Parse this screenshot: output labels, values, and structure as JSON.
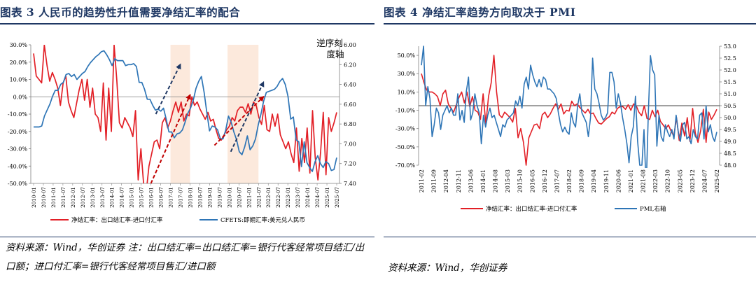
{
  "left": {
    "title": "图表 3   人民币的趋势性升值需要净结汇率的配合",
    "source_note": "资料来源：Wind，华创证券    注：出口结汇率=出口结汇率=银行代客经常项目结汇/出口额；进口付汇率=银行代客经常项目售汇/进口额",
    "chart_data": {
      "type": "line",
      "annotation": "逆序刻度轴",
      "annotation_lines": [
        "逆序刻",
        "度轴"
      ],
      "x_labels": [
        "2010-01",
        "2010-07",
        "2011-01",
        "2011-07",
        "2012-01",
        "2012-07",
        "2013-01",
        "2013-07",
        "2014-01",
        "2014-07",
        "2015-01",
        "2015-07",
        "2016-01",
        "2016-07",
        "2017-01",
        "2017-07",
        "2018-01",
        "2018-07",
        "2019-01",
        "2019-07",
        "2020-01",
        "2020-07",
        "2021-01",
        "2021-07",
        "2022-01",
        "2022-07",
        "2023-01",
        "2023-07",
        "2024-01",
        "2024-07",
        "2025-01",
        "2025-07"
      ],
      "y_left_ticks": [
        "30.0%",
        "20.0%",
        "10.0%",
        "0.0%",
        "-10.0%",
        "-20.0%",
        "-30.0%",
        "-40.0%",
        "-50.0%"
      ],
      "y_left_range": [
        -50,
        30
      ],
      "y_right_ticks": [
        "6.00",
        "6.20",
        "6.40",
        "6.60",
        "6.80",
        "7.00",
        "7.20",
        "7.40"
      ],
      "y_right_range": [
        6.0,
        7.4
      ],
      "y_right_inverted": true,
      "highlight_ranges": [
        [
          "2017-01",
          "2018-01"
        ],
        [
          "2019-12",
          "2021-07"
        ]
      ],
      "series": [
        {
          "name": "净结汇率：出口结汇率-进口付汇率",
          "color": "#e21f26",
          "axis": "left",
          "values": [
            25,
            12,
            10,
            8,
            30,
            18,
            9,
            14,
            10,
            5,
            -5,
            8,
            12,
            -3,
            -8,
            -12,
            -4,
            4,
            10,
            -2,
            10,
            -6,
            5,
            -10,
            -12,
            -20,
            8,
            -25,
            5,
            -20,
            30,
            10,
            -15,
            -18,
            -12,
            -15,
            -18,
            -23,
            -8,
            -48,
            -30,
            -50,
            -55,
            -40,
            -33,
            -26,
            -25,
            -30,
            -15,
            -12,
            -18,
            -14,
            -8,
            -3,
            -9,
            -3,
            -14,
            -10,
            -11,
            0,
            -5,
            -3,
            -7,
            -10,
            -13,
            -9,
            -14,
            -13,
            -19,
            -24,
            -25,
            -22,
            -19,
            -17,
            -12,
            -14,
            -8,
            -6,
            -6,
            -9,
            -4,
            -10,
            -3,
            -5,
            -12,
            -16,
            -5,
            -19,
            -20,
            -10,
            -17,
            -10,
            -22,
            -26,
            -30,
            -26,
            -33,
            -38,
            -18,
            -43,
            -24,
            -38,
            -18,
            -44,
            -8,
            -35,
            -48,
            -32,
            -9,
            -45,
            -12,
            -20,
            -15,
            -9
          ]
        },
        {
          "name": "CFETS:即期汇率:美元兑人民币",
          "color": "#2e75b6",
          "axis": "right",
          "values": [
            6.83,
            6.83,
            6.83,
            6.82,
            6.72,
            6.66,
            6.6,
            6.52,
            6.46,
            6.46,
            6.4,
            6.38,
            6.3,
            6.29,
            6.32,
            6.3,
            6.35,
            6.32,
            6.29,
            6.27,
            6.22,
            6.18,
            6.15,
            6.12,
            6.1,
            6.07,
            6.06,
            6.1,
            6.15,
            6.21,
            6.14,
            6.16,
            6.16,
            6.16,
            6.21,
            6.2,
            6.2,
            6.19,
            6.22,
            6.38,
            6.38,
            6.45,
            6.55,
            6.55,
            6.61,
            6.66,
            6.65,
            6.67,
            6.64,
            6.75,
            6.88,
            6.88,
            6.94,
            6.9,
            6.89,
            6.86,
            6.78,
            6.69,
            6.64,
            6.56,
            6.44,
            6.37,
            6.32,
            6.48,
            6.68,
            6.87,
            6.82,
            6.83,
            6.86,
            6.95,
            6.95,
            6.86,
            6.72,
            6.78,
            6.88,
            6.96,
            7.08,
            7.11,
            7.03,
            6.92,
            7.06,
            7.02,
            6.95,
            6.81,
            6.7,
            6.57,
            6.48,
            6.47,
            6.46,
            6.45,
            6.42,
            6.37,
            6.34,
            6.4,
            6.52,
            6.75,
            6.73,
            6.96,
            6.98,
            7.23,
            6.98,
            7.19,
            7.24,
            7.28,
            7.18,
            7.12,
            7.2,
            7.24,
            7.18,
            7.2,
            7.27,
            7.26,
            7.14
          ]
        }
      ],
      "arrows": [
        {
          "color": "#c00000",
          "from": [
            "2016-01",
            -50
          ],
          "to": [
            "2018-01",
            1
          ]
        },
        {
          "color": "#1f3864",
          "from": [
            "2016-04",
            6.7
          ],
          "to": [
            "2017-07",
            6.2
          ]
        },
        {
          "color": "#c00000",
          "from": [
            "2019-04",
            -28
          ],
          "to": [
            "2021-10",
            0
          ]
        },
        {
          "color": "#1f3864",
          "from": [
            "2020-02",
            7.08
          ],
          "to": [
            "2021-10",
            6.38
          ]
        }
      ]
    }
  },
  "right": {
    "title": "图表 4   净结汇率趋势方向取决于 PMI",
    "source_note": "资料来源：Wind，华创证券",
    "chart_data": {
      "type": "line",
      "x_labels": [
        "2011-02",
        "2011-09",
        "2012-04",
        "2012-11",
        "2013-06",
        "2014-01",
        "2014-08",
        "2015-03",
        "2015-10",
        "2016-05",
        "2016-12",
        "2017-07",
        "2018-02",
        "2018-09",
        "2019-04",
        "2019-11",
        "2020-06",
        "2021-01",
        "2021-08",
        "2022-03",
        "2022-10",
        "2023-05",
        "2023-12",
        "2024-07",
        "2025-02"
      ],
      "y_left_ticks": [
        "50.0%",
        "30.0%",
        "10.0%",
        "-10.0%",
        "-30.0%",
        "-50.0%",
        "-70.0%"
      ],
      "y_left_range": [
        -70,
        60
      ],
      "y_right_ticks": [
        "53.0",
        "52.5",
        "52.0",
        "51.5",
        "51.0",
        "50.5",
        "50.0",
        "49.5",
        "49.0",
        "48.5",
        "48.0"
      ],
      "y_right_range": [
        48,
        53
      ],
      "reference_line_right": 50.5,
      "series": [
        {
          "name": "净结汇率：出口结汇率-进口付汇率",
          "color": "#e21f26",
          "axis": "left",
          "values": [
            30,
            20,
            12,
            10,
            10,
            8,
            5,
            -5,
            8,
            12,
            -3,
            -8,
            -12,
            -4,
            4,
            10,
            -2,
            10,
            -6,
            5,
            -10,
            -12,
            -20,
            8,
            -25,
            5,
            20,
            50,
            10,
            -15,
            -18,
            -12,
            -15,
            -18,
            -23,
            -8,
            -40,
            -30,
            -45,
            -70,
            -40,
            -33,
            -26,
            -25,
            -30,
            -15,
            -12,
            -18,
            -14,
            -8,
            -3,
            -9,
            -3,
            -14,
            -10,
            -11,
            0,
            -5,
            -3,
            -7,
            -10,
            -13,
            -9,
            -14,
            -13,
            -19,
            -24,
            -25,
            -22,
            -19,
            -17,
            -12,
            -14,
            -8,
            -6,
            -6,
            -9,
            -4,
            -10,
            -3,
            -5,
            -12,
            -16,
            -5,
            -19,
            -20,
            -10,
            -17,
            -10,
            -22,
            -26,
            -30,
            -26,
            -33,
            -38,
            -18,
            -43,
            -24,
            -38,
            -18,
            -44,
            -8,
            -35,
            -45,
            -32,
            -9,
            -45,
            -12,
            -20,
            -15,
            -9
          ]
        },
        {
          "name": "PMI,右轴",
          "color": "#2e75b6",
          "axis": "right",
          "values": [
            52.2,
            53.0,
            50.5,
            51.3,
            50.8,
            49.2,
            49.7,
            50.4,
            50.2,
            49.5,
            50.1,
            50.3,
            50.5,
            50.2,
            50.4,
            50.1,
            50.1,
            51.0,
            49.9,
            50.3,
            49.8,
            51.1,
            51.7,
            49.9,
            50.2,
            51.0,
            50.5,
            50.2,
            48.9,
            50.1,
            49.6,
            50.1,
            50.4,
            50.0,
            50.1,
            49.8,
            49.5,
            49.2,
            49.7,
            49.6,
            49.9,
            50.0,
            50.1,
            50.2,
            50.7,
            50.5,
            50.9,
            50.4,
            51.4,
            51.7,
            51.2,
            52.2,
            51.8,
            51.5,
            51.3,
            51.6,
            51.3,
            51.7,
            51.6,
            51.2,
            51.2,
            51.1,
            51.0,
            50.8,
            50.2,
            49.7,
            49.4,
            49.6,
            49.4,
            49.3,
            50.2,
            49.8,
            49.6,
            50.5,
            51.0,
            50.2,
            50.0,
            49.8,
            49.2,
            50.0,
            52.5,
            51.2,
            51.0,
            50.6,
            50.1,
            49.9,
            50.0,
            50.2,
            51.9,
            51.9,
            51.5,
            50.4,
            51.0,
            50.6,
            50.0,
            49.5,
            48.9,
            48.1,
            49.2,
            49.6,
            50.9,
            49.0,
            48.0,
            48.0,
            49.5,
            47.0,
            50.1,
            52.6,
            52.0,
            51.8,
            48.8,
            50.1,
            49.2,
            49.0,
            49.7,
            49.4,
            49.2,
            49.5,
            49.1,
            50.1,
            49.4,
            49.0,
            49.7,
            49.8,
            49.1,
            49.2,
            48.9,
            49.5,
            49.2,
            49.1,
            50.1,
            50.2,
            49.1,
            50.5,
            49.4,
            49.7,
            49.2,
            49.0,
            49.4
          ]
        }
      ]
    }
  }
}
